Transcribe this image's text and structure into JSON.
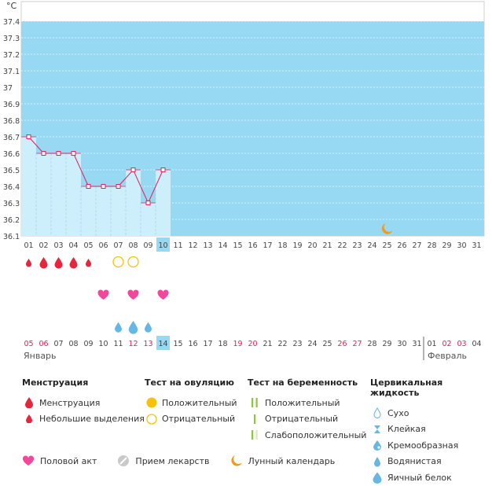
{
  "chart_data": {
    "type": "line",
    "y_unit": "°C",
    "ylim": [
      36.1,
      37.4
    ],
    "y_ticks": [
      "36.1",
      "36.2",
      "36.3",
      "36.4",
      "36.5",
      "36.6",
      "36.7",
      "36.8",
      "36.9",
      "37",
      "37.1",
      "37.2",
      "37.3",
      "37.4"
    ],
    "cycle_days": [
      "01",
      "02",
      "03",
      "04",
      "05",
      "06",
      "07",
      "08",
      "09",
      "10",
      "11",
      "12",
      "13",
      "14",
      "15",
      "16",
      "17",
      "18",
      "19",
      "20",
      "21",
      "22",
      "23",
      "24",
      "25",
      "26",
      "27",
      "28",
      "29",
      "30",
      "31"
    ],
    "current_day_index": 9,
    "temperatures": [
      {
        "day": "01",
        "value": 36.7
      },
      {
        "day": "02",
        "value": 36.6
      },
      {
        "day": "03",
        "value": 36.6
      },
      {
        "day": "04",
        "value": 36.6
      },
      {
        "day": "05",
        "value": 36.4
      },
      {
        "day": "06",
        "value": 36.4
      },
      {
        "day": "07",
        "value": 36.4
      },
      {
        "day": "08",
        "value": 36.5
      },
      {
        "day": "09",
        "value": 36.3
      },
      {
        "day": "10",
        "value": 36.5
      }
    ],
    "moon_day_index": 24,
    "calendar_dates": [
      {
        "d": "05",
        "red": true
      },
      {
        "d": "06",
        "red": true
      },
      {
        "d": "07",
        "red": false
      },
      {
        "d": "08",
        "red": false
      },
      {
        "d": "09",
        "red": false
      },
      {
        "d": "10",
        "red": false
      },
      {
        "d": "11",
        "red": false
      },
      {
        "d": "12",
        "red": true
      },
      {
        "d": "13",
        "red": true
      },
      {
        "d": "14",
        "red": false
      },
      {
        "d": "15",
        "red": false
      },
      {
        "d": "16",
        "red": false
      },
      {
        "d": "17",
        "red": false
      },
      {
        "d": "18",
        "red": false
      },
      {
        "d": "19",
        "red": true
      },
      {
        "d": "20",
        "red": true
      },
      {
        "d": "21",
        "red": false
      },
      {
        "d": "22",
        "red": false
      },
      {
        "d": "23",
        "red": false
      },
      {
        "d": "24",
        "red": false
      },
      {
        "d": "25",
        "red": false
      },
      {
        "d": "26",
        "red": true
      },
      {
        "d": "27",
        "red": true
      },
      {
        "d": "28",
        "red": false
      },
      {
        "d": "29",
        "red": false
      },
      {
        "d": "30",
        "red": false
      },
      {
        "d": "31",
        "red": false
      },
      {
        "d": "01",
        "red": false
      },
      {
        "d": "02",
        "red": true
      },
      {
        "d": "03",
        "red": true
      },
      {
        "d": "04",
        "red": false
      }
    ],
    "month_start": "Январь",
    "month_next": "Февраль",
    "month_split_index": 27,
    "menstruation": [
      {
        "day_index": 0,
        "kind": "light"
      },
      {
        "day_index": 1,
        "kind": "heavy"
      },
      {
        "day_index": 2,
        "kind": "heavy"
      },
      {
        "day_index": 3,
        "kind": "heavy"
      },
      {
        "day_index": 4,
        "kind": "light"
      }
    ],
    "ovulation_tests": [
      {
        "day_index": 6,
        "result": "negative"
      },
      {
        "day_index": 7,
        "result": "negative"
      }
    ],
    "intercourse_days": [
      5,
      7,
      9
    ],
    "cervical_fluid": [
      {
        "day_index": 6,
        "kind": "watery"
      },
      {
        "day_index": 7,
        "kind": "egg-white"
      },
      {
        "day_index": 8,
        "kind": "watery"
      }
    ]
  },
  "colors": {
    "chart_bg": "#97d8f2",
    "temp_fill": "#cdeefb",
    "temp_line": "#e0205a",
    "current_day": "#97d8f2",
    "red_date": "#e0205a",
    "blood": "#e9243d",
    "ovulation": "#f5c20a",
    "heart": "#f2479a",
    "fluid": "#67b7e4",
    "pregnancy": "#8cc63f",
    "moon": "#f39a1a"
  },
  "legend": {
    "menstruation": {
      "title": "Менструация",
      "items": [
        "Менструация",
        "Небольшие выделения"
      ]
    },
    "ovulation": {
      "title": "Тест на овуляцию",
      "items": [
        "Положительный",
        "Отрицательный"
      ]
    },
    "pregnancy": {
      "title": "Тест на беременность",
      "items": [
        "Положительный",
        "Отрицательный",
        "Слабоположительный"
      ]
    },
    "cervical": {
      "title": "Цервикальная жидкость",
      "items": [
        "Сухо",
        "Клейкая",
        "Кремообразная",
        "Водянистая",
        "Яичный белок"
      ]
    },
    "bottom": [
      "Половой акт",
      "Прием лекарств",
      "Лунный календарь"
    ]
  }
}
